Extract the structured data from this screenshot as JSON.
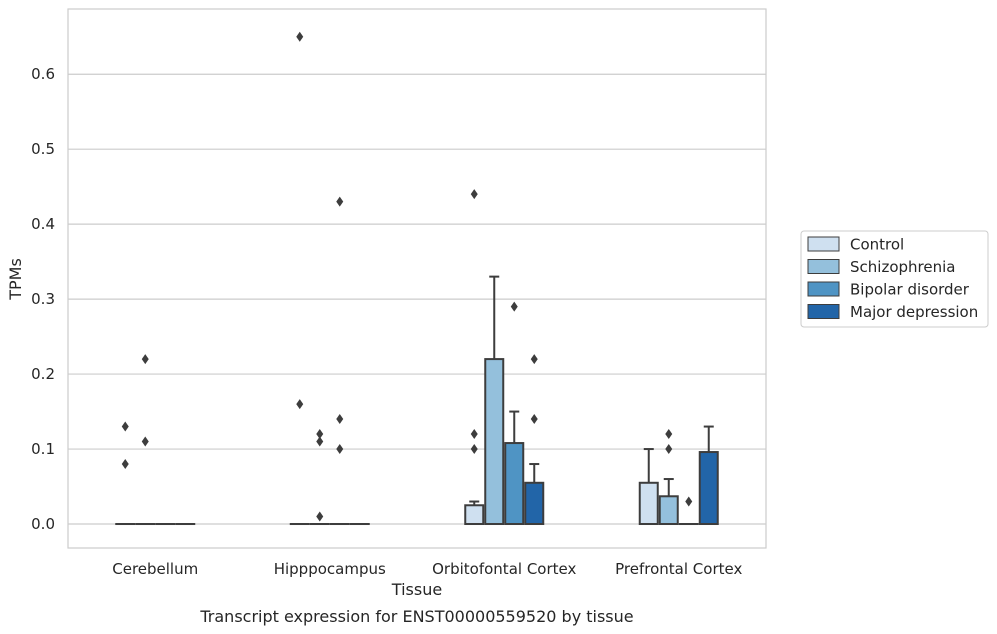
{
  "chart_data": {
    "type": "box",
    "caption": "Transcript expression for ENST00000559520 by tissue",
    "xlabel": "Tissue",
    "ylabel": "TPMs",
    "ylim": [
      -0.032,
      0.687
    ],
    "yticks": [
      0.0,
      0.1,
      0.2,
      0.3,
      0.4,
      0.5,
      0.6
    ],
    "ytick_labels": [
      "0.0",
      "0.1",
      "0.2",
      "0.3",
      "0.4",
      "0.5",
      "0.6"
    ],
    "grid": "horizontal",
    "legend_position": "right",
    "categories": [
      "Cerebellum",
      "Hipppocampus",
      "Orbitofontal Cortex",
      "Prefrontal Cortex"
    ],
    "series": [
      {
        "name": "Control",
        "color": "#cfe0f0",
        "boxes": [
          {
            "q1": 0,
            "q3": 0,
            "median": 0,
            "whisker_low": 0,
            "whisker_high": 0,
            "outliers": [
              0.08,
              0.13
            ]
          },
          {
            "q1": 0,
            "q3": 0,
            "median": 0,
            "whisker_low": 0,
            "whisker_high": 0,
            "outliers": [
              0.16,
              0.65
            ]
          },
          {
            "q1": 0,
            "q3": 0.025,
            "median": 0,
            "whisker_low": 0,
            "whisker_high": 0.03,
            "outliers": [
              0.1,
              0.12,
              0.44
            ]
          },
          {
            "q1": 0,
            "q3": 0.055,
            "median": 0,
            "whisker_low": 0,
            "whisker_high": 0.1,
            "outliers": []
          }
        ]
      },
      {
        "name": "Schizophrenia",
        "color": "#94c0dc",
        "boxes": [
          {
            "q1": 0,
            "q3": 0,
            "median": 0,
            "whisker_low": 0,
            "whisker_high": 0,
            "outliers": [
              0.11,
              0.22
            ]
          },
          {
            "q1": 0,
            "q3": 0,
            "median": 0,
            "whisker_low": 0,
            "whisker_high": 0,
            "outliers": [
              0.01,
              0.11,
              0.12
            ]
          },
          {
            "q1": 0,
            "q3": 0.22,
            "median": 0,
            "whisker_low": 0,
            "whisker_high": 0.33,
            "outliers": []
          },
          {
            "q1": 0,
            "q3": 0.037,
            "median": 0,
            "whisker_low": 0,
            "whisker_high": 0.06,
            "outliers": [
              0.1,
              0.12
            ]
          }
        ]
      },
      {
        "name": "Bipolar disorder",
        "color": "#4f94c4",
        "boxes": [
          {
            "q1": 0,
            "q3": 0,
            "median": 0,
            "whisker_low": 0,
            "whisker_high": 0,
            "outliers": []
          },
          {
            "q1": 0,
            "q3": 0,
            "median": 0,
            "whisker_low": 0,
            "whisker_high": 0,
            "outliers": [
              0.1,
              0.14,
              0.43
            ]
          },
          {
            "q1": 0,
            "q3": 0.108,
            "median": 0,
            "whisker_low": 0,
            "whisker_high": 0.15,
            "outliers": [
              0.29
            ]
          },
          {
            "q1": 0,
            "q3": 0,
            "median": 0,
            "whisker_low": 0,
            "whisker_high": 0,
            "outliers": [
              0.03
            ]
          }
        ]
      },
      {
        "name": "Major depression",
        "color": "#2265a8",
        "boxes": [
          {
            "q1": 0,
            "q3": 0,
            "median": 0,
            "whisker_low": 0,
            "whisker_high": 0,
            "outliers": []
          },
          {
            "q1": 0,
            "q3": 0,
            "median": 0,
            "whisker_low": 0,
            "whisker_high": 0,
            "outliers": []
          },
          {
            "q1": 0,
            "q3": 0.055,
            "median": 0,
            "whisker_low": 0,
            "whisker_high": 0.08,
            "outliers": [
              0.14,
              0.22
            ]
          },
          {
            "q1": 0,
            "q3": 0.096,
            "median": 0,
            "whisker_low": 0,
            "whisker_high": 0.13,
            "outliers": []
          }
        ]
      }
    ]
  }
}
